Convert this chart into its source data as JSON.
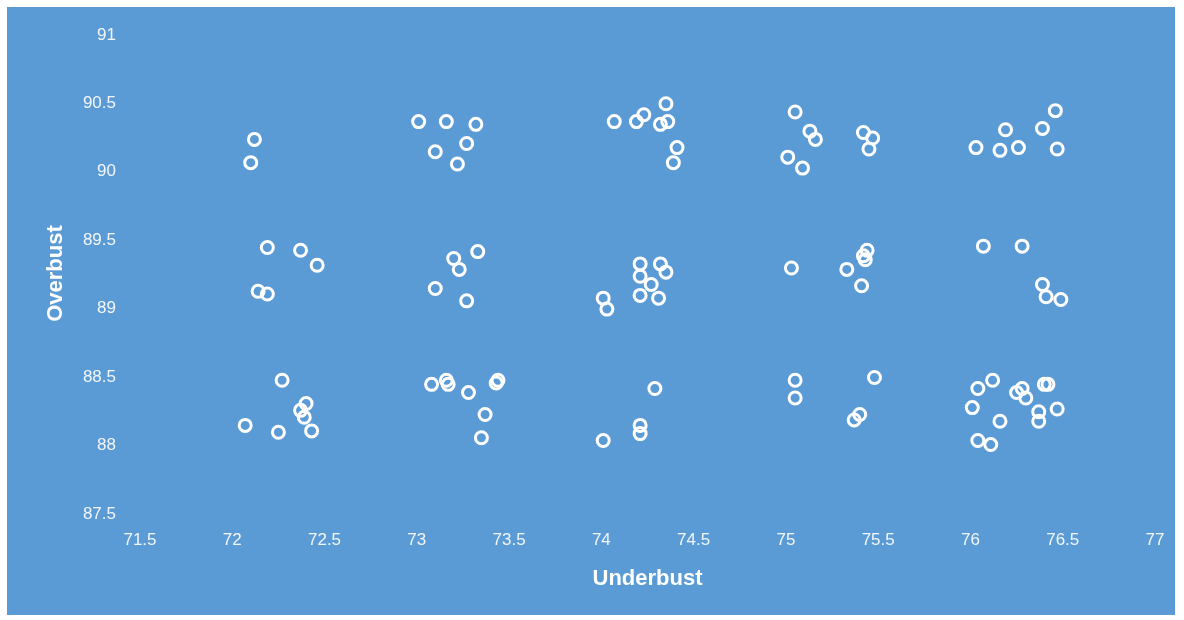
{
  "chart_data": {
    "type": "scatter",
    "xlabel": "Underbust",
    "ylabel": "Overbust",
    "xlim": [
      71.5,
      77
    ],
    "ylim": [
      87.5,
      91
    ],
    "xticks": [
      71.5,
      72,
      72.5,
      73,
      73.5,
      74,
      74.5,
      75,
      75.5,
      76,
      76.5,
      77
    ],
    "yticks": [
      87.5,
      88,
      88.5,
      89,
      89.5,
      90,
      90.5,
      91
    ],
    "grid": false,
    "marker": "circle",
    "series": [
      {
        "color": "#ffffff",
        "x": [
          72.12,
          72.1,
          72.19,
          72.37,
          72.46,
          72.14,
          72.19,
          72.27,
          72.4,
          72.37,
          72.39,
          72.07,
          72.25,
          72.43,
          73.01,
          73.16,
          73.32,
          73.1,
          73.27,
          73.22,
          73.33,
          73.2,
          73.23,
          73.1,
          73.27,
          73.08,
          73.16,
          73.17,
          73.28,
          73.43,
          73.44,
          73.37,
          73.35,
          74.07,
          74.19,
          74.23,
          74.35,
          74.36,
          74.32,
          74.41,
          74.39,
          74.21,
          74.32,
          74.21,
          74.35,
          74.27,
          74.21,
          74.31,
          74.01,
          74.03,
          74.29,
          74.21,
          74.21,
          74.01,
          75.05,
          75.13,
          75.16,
          75.42,
          75.47,
          75.45,
          75.01,
          75.09,
          75.03,
          75.33,
          75.44,
          75.42,
          75.43,
          75.41,
          75.05,
          75.05,
          75.48,
          75.4,
          75.37,
          76.03,
          76.16,
          76.19,
          76.26,
          76.39,
          76.46,
          76.47,
          76.07,
          76.28,
          76.39,
          76.41,
          76.49,
          76.04,
          76.12,
          76.01,
          76.25,
          76.28,
          76.3,
          76.4,
          76.42,
          76.47,
          76.37,
          76.37,
          76.16,
          76.04,
          76.11
        ],
        "values": [
          90.23,
          90.06,
          89.44,
          89.42,
          89.31,
          89.12,
          89.1,
          88.47,
          88.3,
          88.25,
          88.2,
          88.14,
          88.09,
          88.1,
          90.36,
          90.36,
          90.34,
          90.14,
          90.2,
          90.05,
          89.41,
          89.36,
          89.28,
          89.14,
          89.05,
          88.44,
          88.47,
          88.44,
          88.38,
          88.45,
          88.47,
          88.22,
          88.05,
          90.36,
          90.36,
          90.41,
          90.49,
          90.36,
          90.34,
          90.17,
          90.06,
          89.32,
          89.32,
          89.23,
          89.26,
          89.17,
          89.09,
          89.07,
          89.07,
          88.99,
          88.41,
          88.14,
          88.08,
          88.03,
          90.43,
          90.29,
          90.23,
          90.28,
          90.24,
          90.16,
          90.1,
          90.02,
          89.29,
          89.28,
          89.42,
          89.38,
          89.35,
          89.16,
          88.47,
          88.34,
          88.49,
          88.22,
          88.18,
          90.17,
          90.15,
          90.3,
          90.17,
          90.31,
          90.44,
          90.16,
          89.45,
          89.45,
          89.17,
          89.08,
          89.06,
          88.41,
          88.47,
          88.27,
          88.38,
          88.41,
          88.34,
          88.44,
          88.44,
          88.26,
          88.24,
          88.17,
          88.17,
          88.03,
          88.0
        ]
      }
    ]
  }
}
